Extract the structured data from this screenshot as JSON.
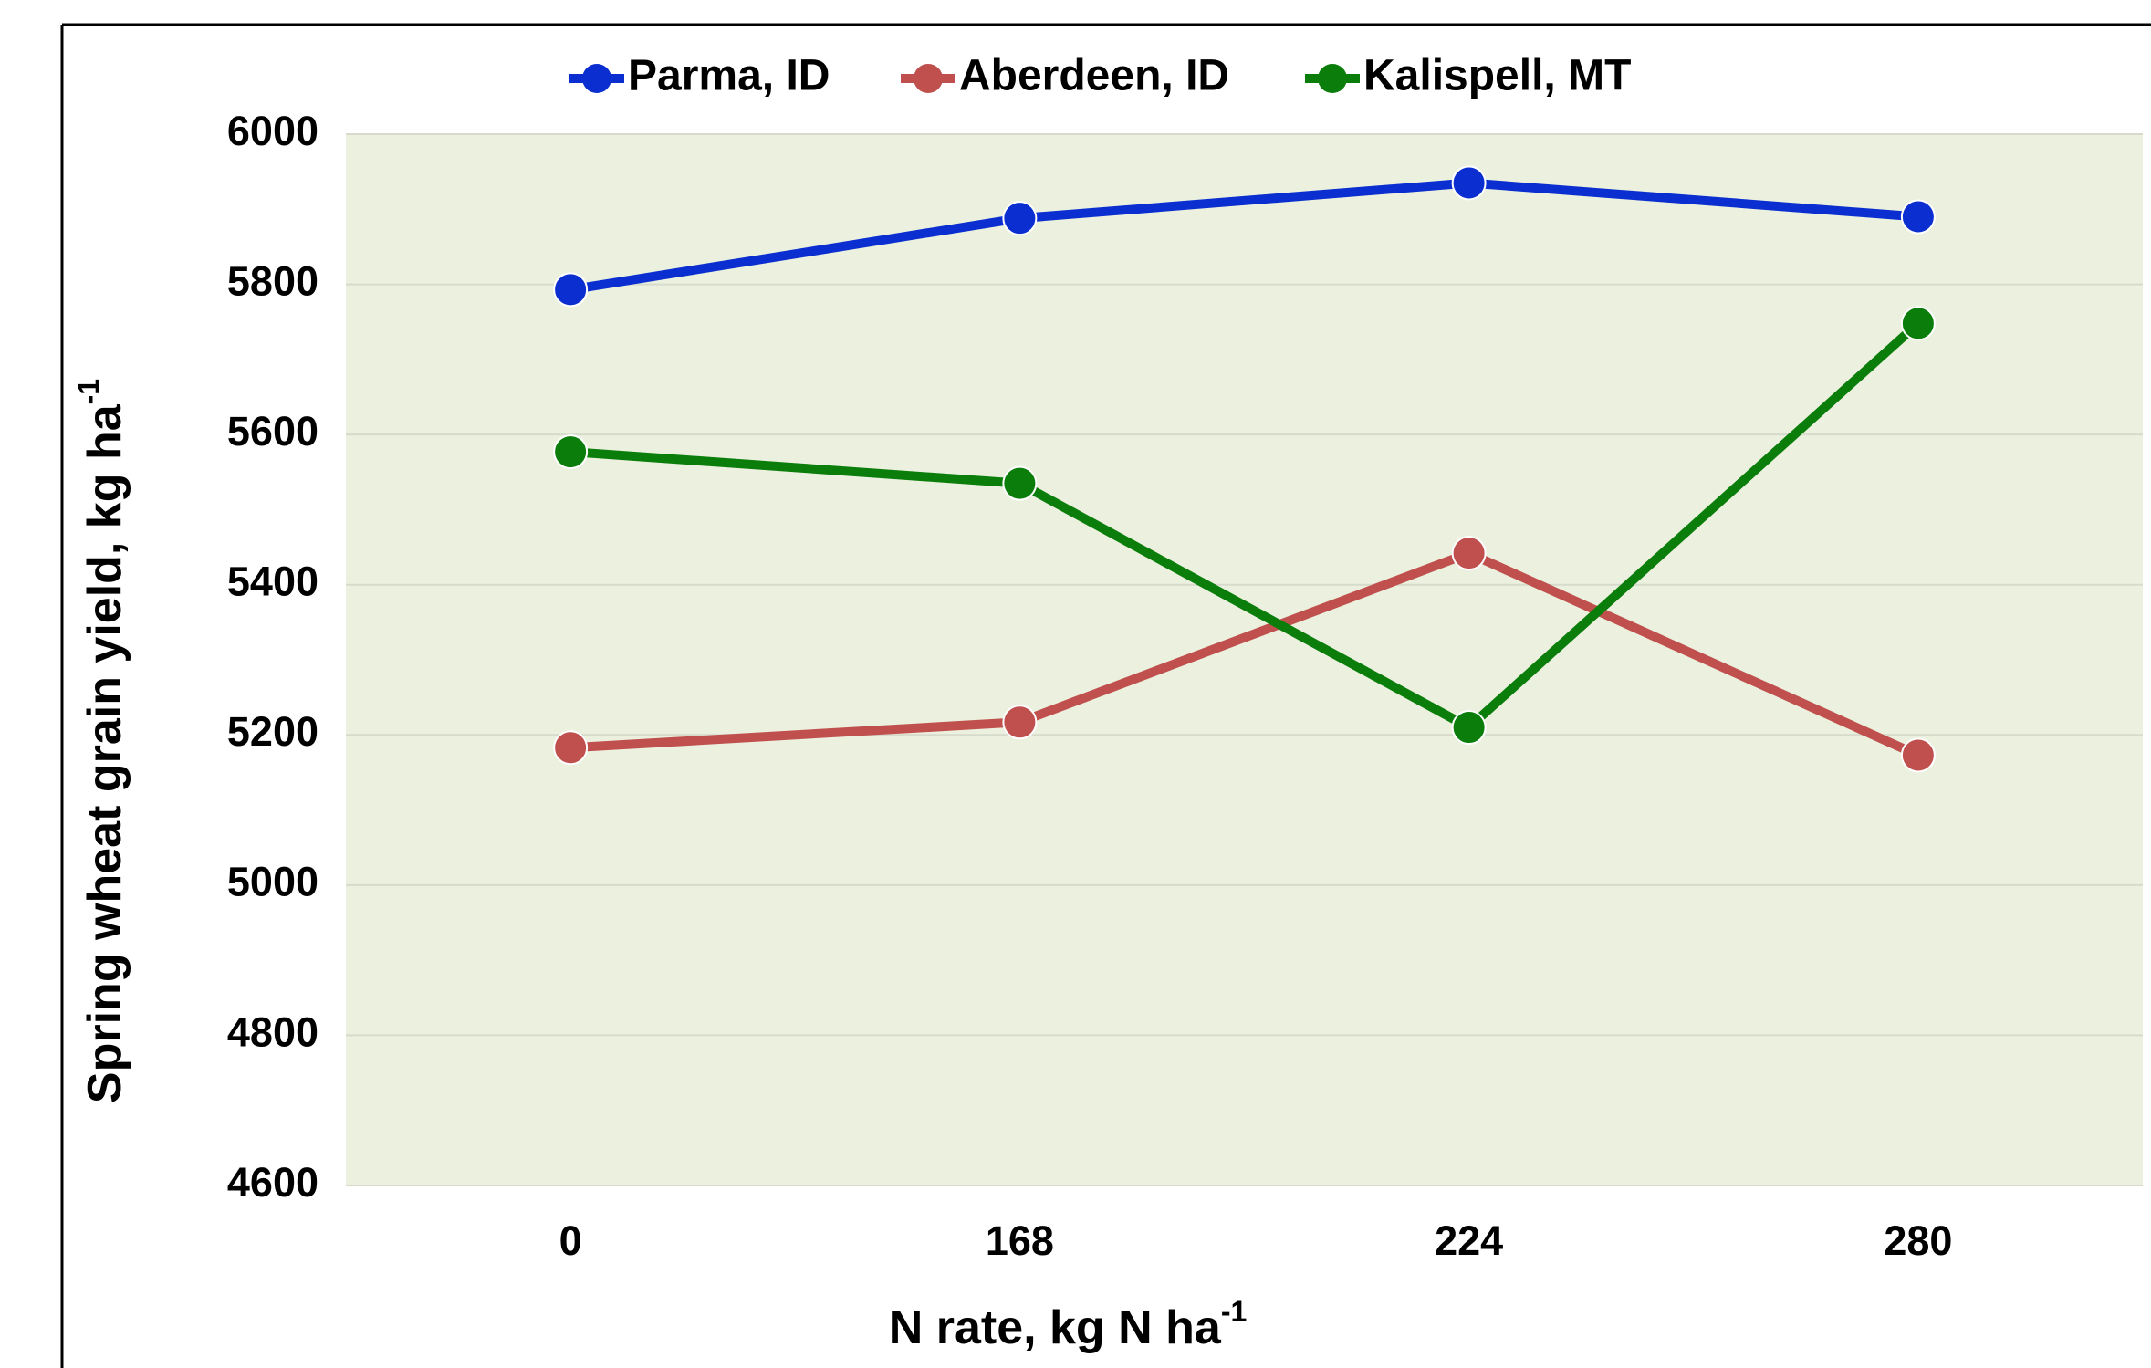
{
  "chart_data": {
    "type": "line",
    "x_label": "N rate, kg N ha",
    "x_label_sup": "-1",
    "y_label": "Spring wheat grain yield, kg ha",
    "y_label_sup": "-1",
    "categories": [
      "0",
      "168",
      "224",
      "280"
    ],
    "series": [
      {
        "name": "Parma, ID",
        "color": "#0a2ecf",
        "values": [
          5793,
          5888,
          5935,
          5890
        ]
      },
      {
        "name": "Aberdeen, ID",
        "color": "#c0504d",
        "values": [
          5183,
          5217,
          5442,
          5173
        ]
      },
      {
        "name": "Kalispell, MT",
        "color": "#0a7d0a",
        "values": [
          5577,
          5535,
          5210,
          5748
        ]
      }
    ],
    "ylim": [
      4600,
      6000
    ],
    "yticks": [
      4600,
      4800,
      5000,
      5200,
      5400,
      5600,
      5800,
      6000
    ],
    "grid": true,
    "legend": "top"
  }
}
